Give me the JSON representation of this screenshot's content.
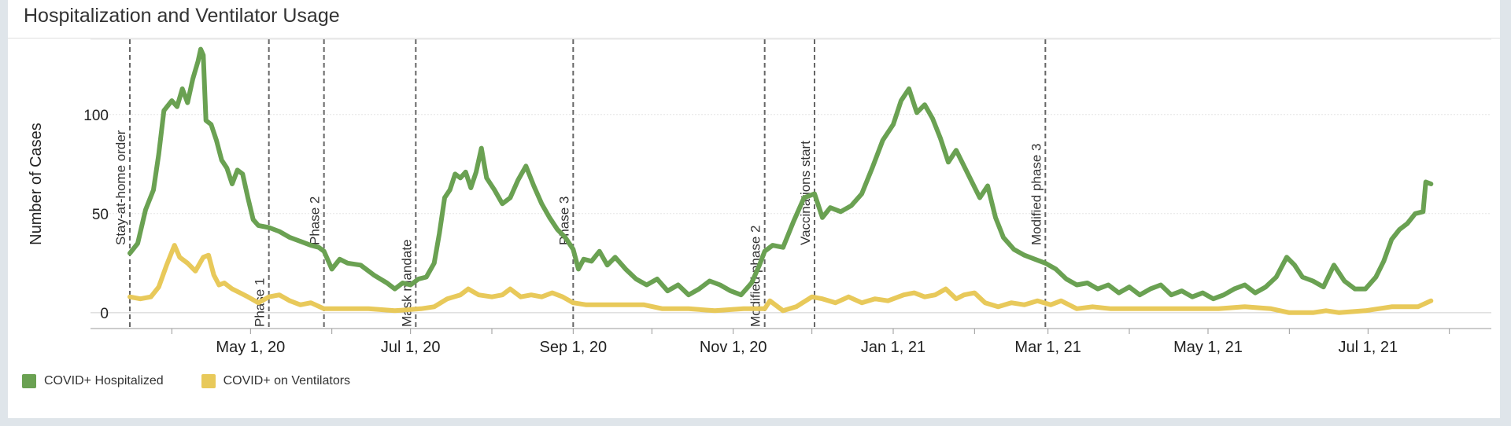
{
  "title": "Hospitalization and Ventilator Usage",
  "colors": {
    "hospitalized": "#6aa152",
    "ventilators": "#e8c95a",
    "event_line": "#666666",
    "grid": "#e6e6e6"
  },
  "legend": {
    "hospitalized_label": "COVID+ Hospitalized",
    "ventilators_label": "COVID+ on Ventilators"
  },
  "chart_data": {
    "type": "line",
    "title": "Hospitalization and Ventilator Usage",
    "xlabel": "",
    "ylabel": "Number of Cases",
    "xlim": [
      "2020-03-01",
      "2021-08-17"
    ],
    "ylim": [
      -8,
      138
    ],
    "y_ticks": [
      0,
      50,
      100
    ],
    "x_ticks": [
      {
        "date": "2020-05-01",
        "label": "May 1, 20"
      },
      {
        "date": "2020-07-01",
        "label": "Jul 1, 20"
      },
      {
        "date": "2020-09-01",
        "label": "Sep 1, 20"
      },
      {
        "date": "2020-11-01",
        "label": "Nov 1, 20"
      },
      {
        "date": "2021-01-01",
        "label": "Jan 1, 21"
      },
      {
        "date": "2021-03-01",
        "label": "Mar 1, 21"
      },
      {
        "date": "2021-05-01",
        "label": "May 1, 21"
      },
      {
        "date": "2021-07-01",
        "label": "Jul 1, 21"
      }
    ],
    "events": [
      {
        "date": "2020-03-16",
        "label": "Stay-at-home order",
        "label_pos": "high"
      },
      {
        "date": "2020-05-08",
        "label": "Phase 1",
        "label_pos": "low"
      },
      {
        "date": "2020-05-29",
        "label": "Phase 2",
        "label_pos": "high"
      },
      {
        "date": "2020-07-03",
        "label": "Mask mandate",
        "label_pos": "low"
      },
      {
        "date": "2020-09-01",
        "label": "Phase 3",
        "label_pos": "high"
      },
      {
        "date": "2020-11-13",
        "label": "Modified phase 2",
        "label_pos": "low"
      },
      {
        "date": "2020-12-02",
        "label": "Vaccinations start",
        "label_pos": "high"
      },
      {
        "date": "2021-02-28",
        "label": "Modified phase 3",
        "label_pos": "high"
      }
    ],
    "series": [
      {
        "name": "COVID+ Hospitalized",
        "color": "#6aa152",
        "points": [
          [
            "2020-03-16",
            30
          ],
          [
            "2020-03-19",
            35
          ],
          [
            "2020-03-22",
            52
          ],
          [
            "2020-03-25",
            62
          ],
          [
            "2020-03-27",
            80
          ],
          [
            "2020-03-29",
            102
          ],
          [
            "2020-04-01",
            107
          ],
          [
            "2020-04-03",
            104
          ],
          [
            "2020-04-05",
            113
          ],
          [
            "2020-04-07",
            106
          ],
          [
            "2020-04-09",
            118
          ],
          [
            "2020-04-11",
            127
          ],
          [
            "2020-04-12",
            133
          ],
          [
            "2020-04-13",
            130
          ],
          [
            "2020-04-14",
            97
          ],
          [
            "2020-04-16",
            95
          ],
          [
            "2020-04-18",
            87
          ],
          [
            "2020-04-20",
            77
          ],
          [
            "2020-04-22",
            73
          ],
          [
            "2020-04-24",
            65
          ],
          [
            "2020-04-26",
            72
          ],
          [
            "2020-04-28",
            70
          ],
          [
            "2020-04-30",
            58
          ],
          [
            "2020-05-02",
            47
          ],
          [
            "2020-05-04",
            44
          ],
          [
            "2020-05-08",
            43
          ],
          [
            "2020-05-12",
            41
          ],
          [
            "2020-05-16",
            38
          ],
          [
            "2020-05-20",
            36
          ],
          [
            "2020-05-24",
            34
          ],
          [
            "2020-05-27",
            33
          ],
          [
            "2020-05-29",
            31
          ],
          [
            "2020-06-01",
            22
          ],
          [
            "2020-06-04",
            27
          ],
          [
            "2020-06-07",
            25
          ],
          [
            "2020-06-12",
            24
          ],
          [
            "2020-06-17",
            19
          ],
          [
            "2020-06-22",
            15
          ],
          [
            "2020-06-25",
            12
          ],
          [
            "2020-06-28",
            15
          ],
          [
            "2020-07-01",
            14
          ],
          [
            "2020-07-04",
            17
          ],
          [
            "2020-07-07",
            18
          ],
          [
            "2020-07-10",
            25
          ],
          [
            "2020-07-12",
            40
          ],
          [
            "2020-07-14",
            58
          ],
          [
            "2020-07-16",
            62
          ],
          [
            "2020-07-18",
            70
          ],
          [
            "2020-07-20",
            68
          ],
          [
            "2020-07-22",
            71
          ],
          [
            "2020-07-24",
            63
          ],
          [
            "2020-07-26",
            71
          ],
          [
            "2020-07-28",
            83
          ],
          [
            "2020-07-30",
            68
          ],
          [
            "2020-08-02",
            62
          ],
          [
            "2020-08-05",
            55
          ],
          [
            "2020-08-08",
            58
          ],
          [
            "2020-08-11",
            67
          ],
          [
            "2020-08-14",
            74
          ],
          [
            "2020-08-17",
            64
          ],
          [
            "2020-08-20",
            55
          ],
          [
            "2020-08-23",
            48
          ],
          [
            "2020-08-26",
            42
          ],
          [
            "2020-08-29",
            38
          ],
          [
            "2020-09-01",
            32
          ],
          [
            "2020-09-03",
            22
          ],
          [
            "2020-09-05",
            27
          ],
          [
            "2020-09-08",
            26
          ],
          [
            "2020-09-11",
            31
          ],
          [
            "2020-09-14",
            24
          ],
          [
            "2020-09-17",
            28
          ],
          [
            "2020-09-21",
            22
          ],
          [
            "2020-09-25",
            17
          ],
          [
            "2020-09-29",
            14
          ],
          [
            "2020-10-03",
            17
          ],
          [
            "2020-10-07",
            11
          ],
          [
            "2020-10-11",
            14
          ],
          [
            "2020-10-15",
            9
          ],
          [
            "2020-10-19",
            12
          ],
          [
            "2020-10-23",
            16
          ],
          [
            "2020-10-27",
            14
          ],
          [
            "2020-10-31",
            11
          ],
          [
            "2020-11-04",
            9
          ],
          [
            "2020-11-08",
            15
          ],
          [
            "2020-11-11",
            24
          ],
          [
            "2020-11-13",
            31
          ],
          [
            "2020-11-16",
            34
          ],
          [
            "2020-11-20",
            33
          ],
          [
            "2020-11-24",
            46
          ],
          [
            "2020-11-28",
            58
          ],
          [
            "2020-12-02",
            60
          ],
          [
            "2020-12-05",
            48
          ],
          [
            "2020-12-08",
            53
          ],
          [
            "2020-12-12",
            51
          ],
          [
            "2020-12-16",
            54
          ],
          [
            "2020-12-20",
            60
          ],
          [
            "2020-12-24",
            73
          ],
          [
            "2020-12-28",
            87
          ],
          [
            "2021-01-01",
            95
          ],
          [
            "2021-01-04",
            107
          ],
          [
            "2021-01-07",
            113
          ],
          [
            "2021-01-10",
            101
          ],
          [
            "2021-01-13",
            105
          ],
          [
            "2021-01-16",
            98
          ],
          [
            "2021-01-19",
            88
          ],
          [
            "2021-01-22",
            76
          ],
          [
            "2021-01-25",
            82
          ],
          [
            "2021-01-28",
            74
          ],
          [
            "2021-01-31",
            66
          ],
          [
            "2021-02-03",
            58
          ],
          [
            "2021-02-06",
            64
          ],
          [
            "2021-02-09",
            48
          ],
          [
            "2021-02-12",
            38
          ],
          [
            "2021-02-16",
            32
          ],
          [
            "2021-02-20",
            29
          ],
          [
            "2021-02-24",
            27
          ],
          [
            "2021-02-28",
            25
          ],
          [
            "2021-03-04",
            22
          ],
          [
            "2021-03-08",
            17
          ],
          [
            "2021-03-12",
            14
          ],
          [
            "2021-03-16",
            15
          ],
          [
            "2021-03-20",
            12
          ],
          [
            "2021-03-24",
            14
          ],
          [
            "2021-03-28",
            10
          ],
          [
            "2021-04-01",
            13
          ],
          [
            "2021-04-05",
            9
          ],
          [
            "2021-04-09",
            12
          ],
          [
            "2021-04-13",
            14
          ],
          [
            "2021-04-17",
            9
          ],
          [
            "2021-04-21",
            11
          ],
          [
            "2021-04-25",
            8
          ],
          [
            "2021-04-29",
            10
          ],
          [
            "2021-05-03",
            7
          ],
          [
            "2021-05-07",
            9
          ],
          [
            "2021-05-11",
            12
          ],
          [
            "2021-05-15",
            14
          ],
          [
            "2021-05-19",
            10
          ],
          [
            "2021-05-23",
            13
          ],
          [
            "2021-05-27",
            18
          ],
          [
            "2021-05-31",
            28
          ],
          [
            "2021-06-03",
            24
          ],
          [
            "2021-06-06",
            18
          ],
          [
            "2021-06-10",
            16
          ],
          [
            "2021-06-14",
            13
          ],
          [
            "2021-06-18",
            24
          ],
          [
            "2021-06-22",
            16
          ],
          [
            "2021-06-26",
            12
          ],
          [
            "2021-06-30",
            12
          ],
          [
            "2021-07-04",
            18
          ],
          [
            "2021-07-07",
            26
          ],
          [
            "2021-07-10",
            37
          ],
          [
            "2021-07-13",
            42
          ],
          [
            "2021-07-16",
            45
          ],
          [
            "2021-07-19",
            50
          ],
          [
            "2021-07-22",
            51
          ],
          [
            "2021-07-23",
            66
          ],
          [
            "2021-07-25",
            65
          ]
        ]
      },
      {
        "name": "COVID+ on Ventilators",
        "color": "#e8c95a",
        "points": [
          [
            "2020-03-16",
            8
          ],
          [
            "2020-03-20",
            7
          ],
          [
            "2020-03-24",
            8
          ],
          [
            "2020-03-27",
            13
          ],
          [
            "2020-03-30",
            24
          ],
          [
            "2020-04-02",
            34
          ],
          [
            "2020-04-04",
            28
          ],
          [
            "2020-04-07",
            25
          ],
          [
            "2020-04-10",
            21
          ],
          [
            "2020-04-13",
            28
          ],
          [
            "2020-04-15",
            29
          ],
          [
            "2020-04-17",
            19
          ],
          [
            "2020-04-19",
            14
          ],
          [
            "2020-04-21",
            15
          ],
          [
            "2020-04-24",
            12
          ],
          [
            "2020-04-27",
            10
          ],
          [
            "2020-04-30",
            8
          ],
          [
            "2020-05-04",
            5
          ],
          [
            "2020-05-08",
            8
          ],
          [
            "2020-05-12",
            9
          ],
          [
            "2020-05-16",
            6
          ],
          [
            "2020-05-20",
            4
          ],
          [
            "2020-05-24",
            5
          ],
          [
            "2020-05-29",
            2
          ],
          [
            "2020-06-05",
            2
          ],
          [
            "2020-06-15",
            2
          ],
          [
            "2020-06-25",
            1
          ],
          [
            "2020-07-05",
            2
          ],
          [
            "2020-07-10",
            3
          ],
          [
            "2020-07-15",
            7
          ],
          [
            "2020-07-20",
            9
          ],
          [
            "2020-07-23",
            12
          ],
          [
            "2020-07-27",
            9
          ],
          [
            "2020-08-01",
            8
          ],
          [
            "2020-08-05",
            9
          ],
          [
            "2020-08-08",
            12
          ],
          [
            "2020-08-12",
            8
          ],
          [
            "2020-08-16",
            9
          ],
          [
            "2020-08-20",
            8
          ],
          [
            "2020-08-24",
            10
          ],
          [
            "2020-08-28",
            8
          ],
          [
            "2020-09-01",
            5
          ],
          [
            "2020-09-06",
            4
          ],
          [
            "2020-09-12",
            4
          ],
          [
            "2020-09-20",
            4
          ],
          [
            "2020-09-28",
            4
          ],
          [
            "2020-10-05",
            2
          ],
          [
            "2020-10-15",
            2
          ],
          [
            "2020-10-25",
            1
          ],
          [
            "2020-11-05",
            2
          ],
          [
            "2020-11-13",
            2
          ],
          [
            "2020-11-15",
            6
          ],
          [
            "2020-11-20",
            1
          ],
          [
            "2020-11-25",
            3
          ],
          [
            "2020-12-01",
            8
          ],
          [
            "2020-12-05",
            7
          ],
          [
            "2020-12-10",
            5
          ],
          [
            "2020-12-15",
            8
          ],
          [
            "2020-12-20",
            5
          ],
          [
            "2020-12-25",
            7
          ],
          [
            "2020-12-30",
            6
          ],
          [
            "2021-01-05",
            9
          ],
          [
            "2021-01-09",
            10
          ],
          [
            "2021-01-13",
            8
          ],
          [
            "2021-01-17",
            9
          ],
          [
            "2021-01-21",
            12
          ],
          [
            "2021-01-25",
            7
          ],
          [
            "2021-01-28",
            9
          ],
          [
            "2021-02-01",
            10
          ],
          [
            "2021-02-05",
            5
          ],
          [
            "2021-02-10",
            3
          ],
          [
            "2021-02-15",
            5
          ],
          [
            "2021-02-20",
            4
          ],
          [
            "2021-02-25",
            6
          ],
          [
            "2021-03-02",
            4
          ],
          [
            "2021-03-06",
            6
          ],
          [
            "2021-03-12",
            2
          ],
          [
            "2021-03-18",
            3
          ],
          [
            "2021-03-25",
            2
          ],
          [
            "2021-04-05",
            2
          ],
          [
            "2021-04-15",
            2
          ],
          [
            "2021-04-25",
            2
          ],
          [
            "2021-05-05",
            2
          ],
          [
            "2021-05-15",
            3
          ],
          [
            "2021-05-25",
            2
          ],
          [
            "2021-06-01",
            0
          ],
          [
            "2021-06-10",
            0
          ],
          [
            "2021-06-15",
            1
          ],
          [
            "2021-06-20",
            0
          ],
          [
            "2021-06-30",
            1
          ],
          [
            "2021-07-05",
            2
          ],
          [
            "2021-07-10",
            3
          ],
          [
            "2021-07-20",
            3
          ],
          [
            "2021-07-25",
            6
          ]
        ]
      }
    ]
  }
}
